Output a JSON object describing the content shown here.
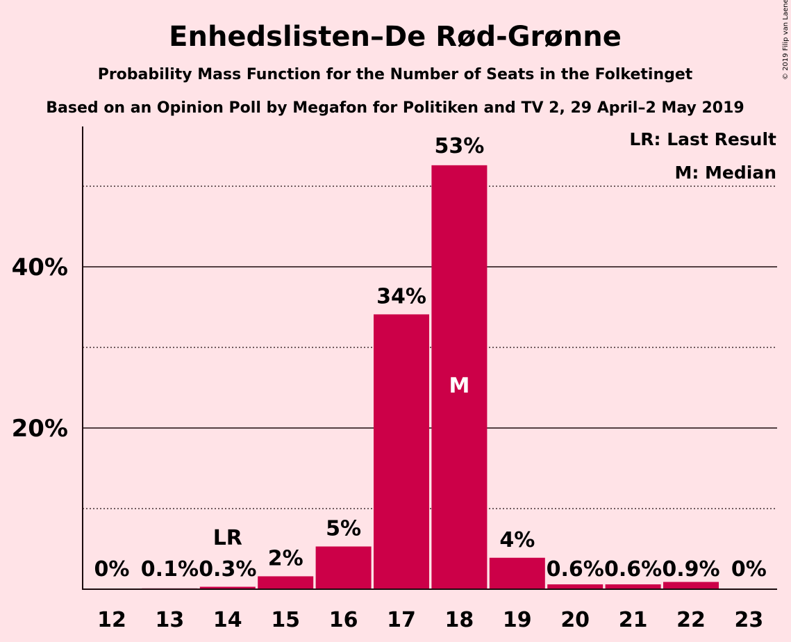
{
  "chart_data": {
    "type": "bar",
    "title": "Enhedslisten–De Rød-Grønne",
    "subtitle": "Probability Mass Function for the Number of Seats in the Folketinget",
    "subtitle2": "Based on an Opinion Poll by Megafon for Politiken and TV 2, 29 April–2 May 2019",
    "copyright": "© 2019 Filip van Laenen",
    "categories": [
      "12",
      "13",
      "14",
      "15",
      "16",
      "17",
      "18",
      "19",
      "20",
      "21",
      "22",
      "23"
    ],
    "values": [
      0,
      0.1,
      0.3,
      1.6,
      5.3,
      34.1,
      52.6,
      3.9,
      0.6,
      0.6,
      0.9,
      0
    ],
    "data_labels": [
      "0%",
      "0.1%",
      "0.3%",
      "2%",
      "5%",
      "34%",
      "53%",
      "4%",
      "0.6%",
      "0.6%",
      "0.9%",
      "0%"
    ],
    "ylim": [
      0,
      57
    ],
    "yticks": [
      {
        "value": 20,
        "label": "20%"
      },
      {
        "value": 40,
        "label": "40%"
      }
    ],
    "minor_gridlines": [
      10,
      30,
      50
    ],
    "bar_color": "#cc0048",
    "background_color": "#ffe3e7",
    "last_result_category": "14",
    "last_result_label": "LR",
    "median_category": "18",
    "median_label": "M",
    "legend": {
      "placement": "top-right",
      "entries": [
        "LR: Last Result",
        "M: Median"
      ]
    }
  }
}
